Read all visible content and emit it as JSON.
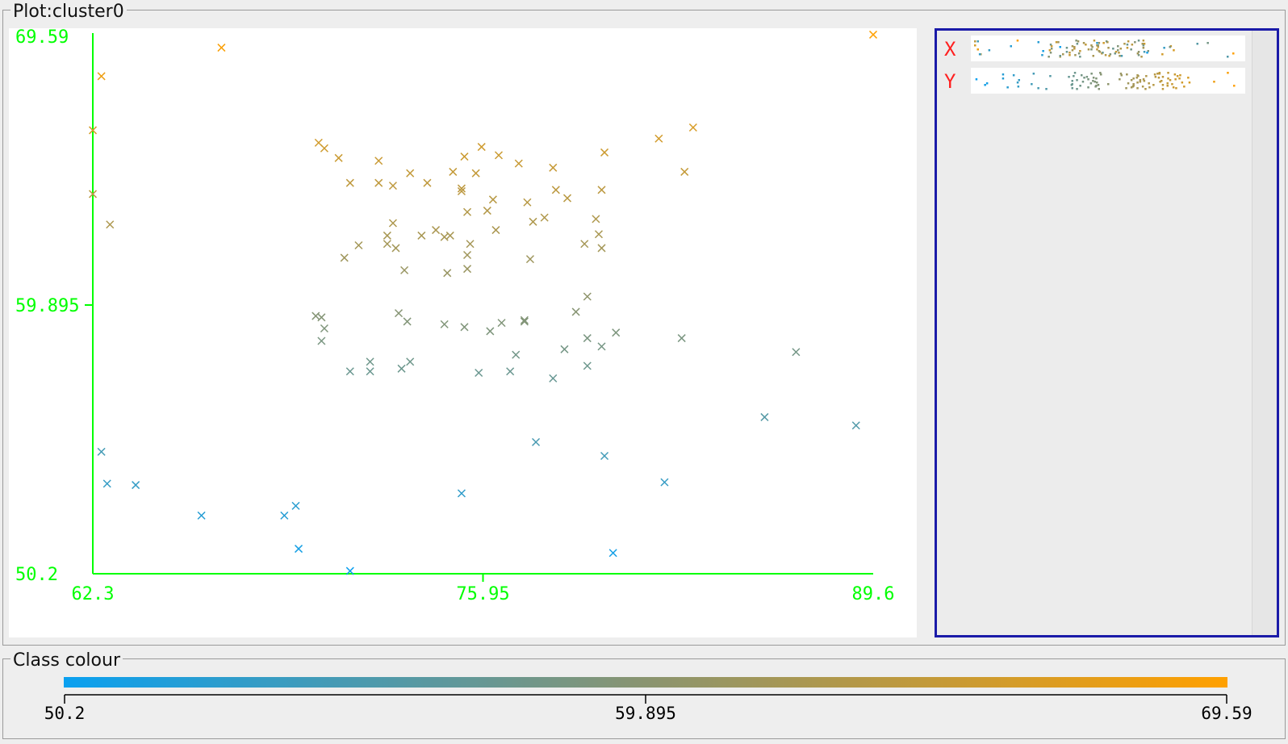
{
  "plot_panel": {
    "title": "Plot:cluster0"
  },
  "legend_panel": {
    "title": "Class colour"
  },
  "colors": {
    "axis": "#00ff00",
    "low": "#0aa0f0",
    "high": "#ffa000",
    "mini_label": "#ff2020",
    "panel_border": "#1a1aa8"
  },
  "mini_plots": {
    "x_label": "X",
    "y_label": "Y"
  },
  "colour_scale": {
    "min": "50.2",
    "mid": "59.895",
    "max": "69.59"
  },
  "chart_data": {
    "type": "scatter",
    "title": "Plot:cluster0",
    "xlabel": "",
    "ylabel": "",
    "xlim": [
      62.3,
      89.6
    ],
    "ylim": [
      50.2,
      69.59
    ],
    "x_ticks": [
      "62.3",
      "75.95",
      "89.6"
    ],
    "y_ticks": [
      "50.2",
      "59.895",
      "69.59"
    ],
    "marker": "x",
    "color_by": "y",
    "color_range": [
      50.2,
      69.59
    ],
    "points": [
      [
        66.8,
        69.18
      ],
      [
        89.6,
        69.65
      ],
      [
        62.6,
        68.15
      ],
      [
        62.3,
        66.2
      ],
      [
        62.3,
        63.9
      ],
      [
        62.9,
        62.8
      ],
      [
        70.2,
        65.75
      ],
      [
        70.4,
        65.55
      ],
      [
        70.9,
        65.2
      ],
      [
        72.3,
        65.1
      ],
      [
        73.4,
        64.65
      ],
      [
        75.3,
        65.25
      ],
      [
        75.9,
        65.6
      ],
      [
        76.5,
        65.3
      ],
      [
        77.2,
        65.0
      ],
      [
        78.4,
        64.85
      ],
      [
        80.2,
        65.4
      ],
      [
        71.3,
        64.3
      ],
      [
        72.3,
        64.3
      ],
      [
        72.8,
        64.2
      ],
      [
        74.0,
        64.3
      ],
      [
        74.9,
        64.7
      ],
      [
        75.7,
        64.65
      ],
      [
        75.2,
        64.1
      ],
      [
        75.2,
        64.0
      ],
      [
        78.5,
        64.05
      ],
      [
        82.1,
        65.9
      ],
      [
        83.3,
        66.3
      ],
      [
        83.0,
        64.7
      ],
      [
        76.3,
        63.7
      ],
      [
        76.1,
        63.3
      ],
      [
        75.4,
        63.25
      ],
      [
        72.8,
        62.85
      ],
      [
        73.8,
        62.4
      ],
      [
        74.8,
        62.4
      ],
      [
        75.5,
        62.1
      ],
      [
        76.4,
        62.6
      ],
      [
        78.1,
        63.05
      ],
      [
        79.9,
        63.0
      ],
      [
        77.5,
        63.6
      ],
      [
        77.7,
        62.9
      ],
      [
        78.9,
        63.75
      ],
      [
        80.1,
        64.05
      ],
      [
        79.5,
        62.1
      ],
      [
        74.3,
        62.6
      ],
      [
        74.6,
        62.35
      ],
      [
        73.2,
        61.15
      ],
      [
        71.6,
        62.05
      ],
      [
        72.6,
        62.4
      ],
      [
        72.6,
        62.1
      ],
      [
        71.1,
        61.6
      ],
      [
        72.9,
        61.95
      ],
      [
        75.4,
        61.7
      ],
      [
        74.7,
        61.05
      ],
      [
        75.4,
        61.2
      ],
      [
        77.6,
        61.55
      ],
      [
        79.6,
        60.2
      ],
      [
        80.1,
        61.95
      ],
      [
        80.0,
        62.45
      ],
      [
        70.1,
        59.5
      ],
      [
        70.3,
        59.45
      ],
      [
        70.4,
        59.05
      ],
      [
        70.3,
        58.6
      ],
      [
        73.0,
        59.6
      ],
      [
        73.3,
        59.3
      ],
      [
        74.6,
        59.2
      ],
      [
        75.3,
        59.1
      ],
      [
        76.2,
        58.95
      ],
      [
        76.6,
        59.25
      ],
      [
        77.4,
        59.35
      ],
      [
        77.4,
        59.3
      ],
      [
        79.2,
        59.65
      ],
      [
        79.6,
        58.7
      ],
      [
        80.6,
        58.9
      ],
      [
        82.9,
        58.7
      ],
      [
        86.9,
        58.2
      ],
      [
        71.3,
        57.5
      ],
      [
        72.0,
        57.5
      ],
      [
        72.0,
        57.85
      ],
      [
        73.1,
        57.6
      ],
      [
        73.4,
        57.85
      ],
      [
        75.8,
        57.45
      ],
      [
        76.9,
        57.5
      ],
      [
        78.4,
        57.25
      ],
      [
        79.6,
        57.7
      ],
      [
        77.1,
        58.1
      ],
      [
        78.8,
        58.3
      ],
      [
        80.1,
        58.4
      ],
      [
        62.6,
        54.6
      ],
      [
        62.8,
        53.45
      ],
      [
        63.8,
        53.4
      ],
      [
        66.1,
        52.3
      ],
      [
        69.0,
        52.3
      ],
      [
        69.4,
        52.65
      ],
      [
        69.5,
        51.1
      ],
      [
        71.3,
        50.3
      ],
      [
        75.2,
        53.1
      ],
      [
        77.8,
        54.95
      ],
      [
        80.2,
        54.45
      ],
      [
        82.3,
        53.5
      ],
      [
        85.8,
        55.85
      ],
      [
        89.0,
        55.55
      ],
      [
        80.5,
        50.95
      ]
    ]
  }
}
